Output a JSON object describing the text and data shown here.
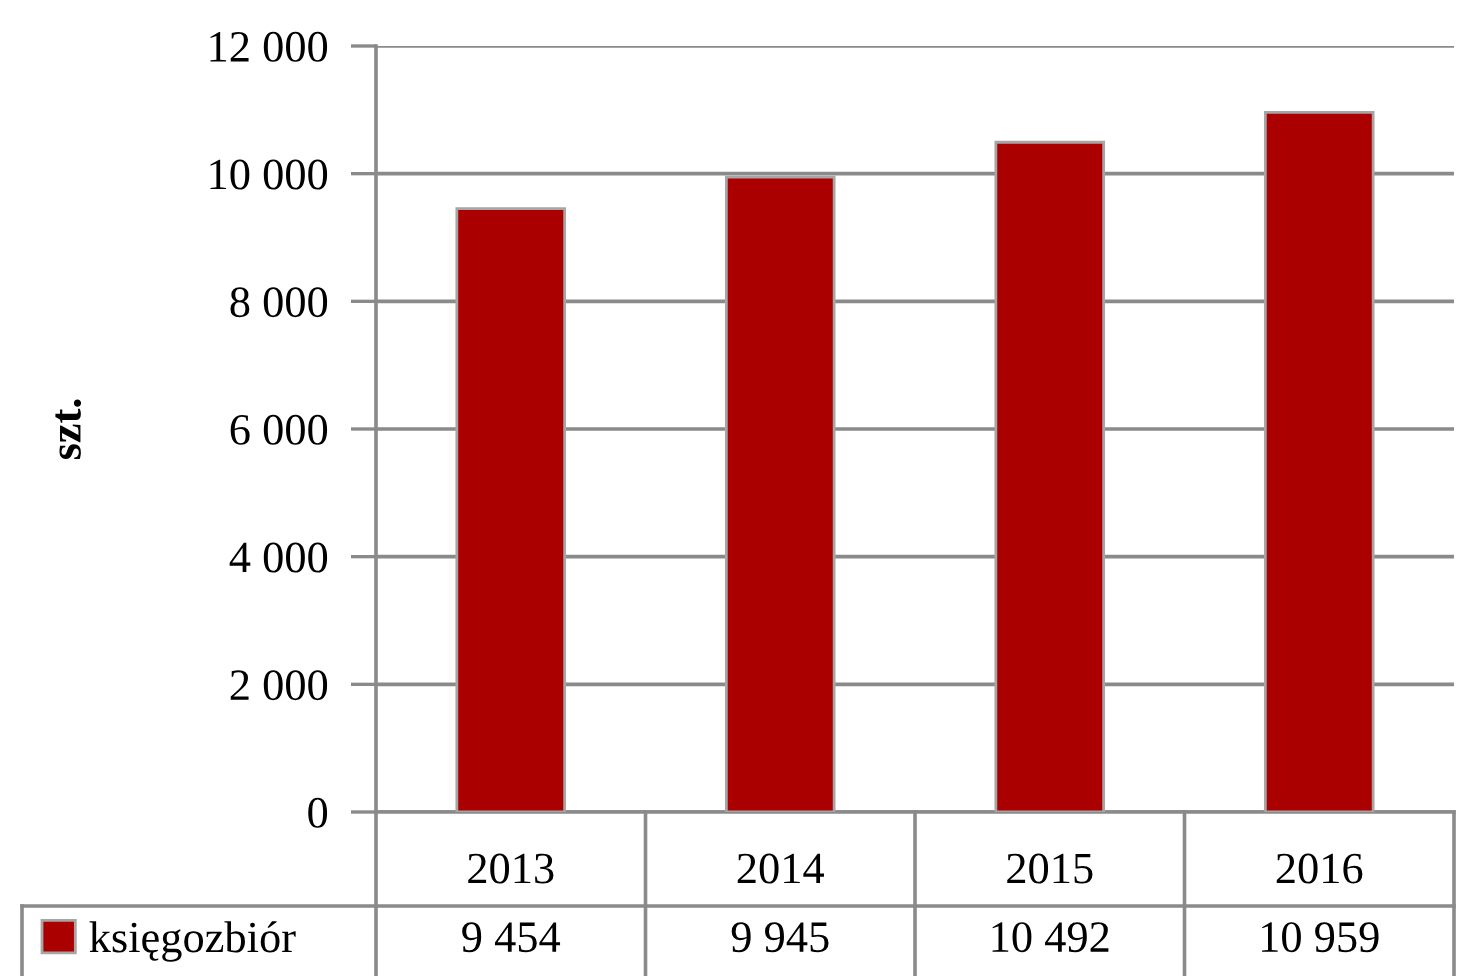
{
  "chart_data": {
    "type": "bar",
    "ylabel": "szt.",
    "categories": [
      "2013",
      "2014",
      "2015",
      "2016"
    ],
    "series": [
      {
        "name": "księgozbiór",
        "color": "#ab0000",
        "values": [
          9454,
          9945,
          10492,
          10959
        ],
        "value_labels": [
          "9 454",
          "9 945",
          "10 492",
          "10 959"
        ]
      }
    ],
    "ylim": [
      0,
      12000
    ],
    "yticks": [
      0,
      {
        "value": 2000,
        "label": "2 000"
      },
      {
        "value": 4000,
        "label": "4 000"
      },
      {
        "value": 6000,
        "label": "6 000"
      },
      {
        "value": 8000,
        "label": "8 000"
      },
      {
        "value": 10000,
        "label": "10 000"
      },
      {
        "value": 12000,
        "label": "12 000"
      }
    ],
    "grid": "y",
    "legend": "bottom left"
  }
}
